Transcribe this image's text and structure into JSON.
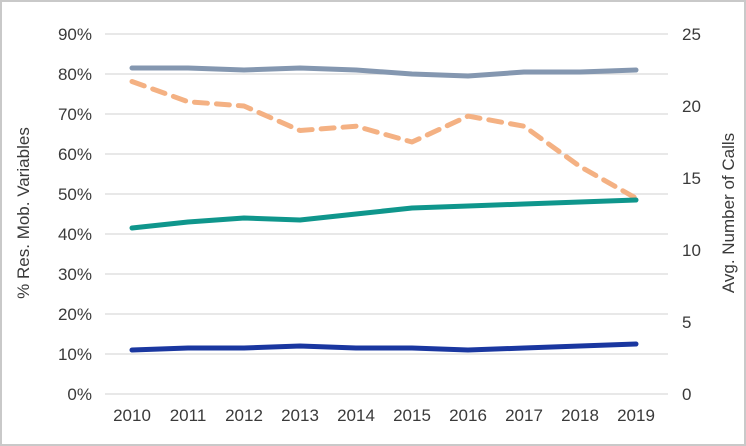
{
  "frame": {
    "background": "#ffffff",
    "border_color": "#c9c9c9",
    "gridline_color": "#d9d9d9",
    "text_color": "#3a3a3a"
  },
  "chart_data": {
    "type": "line",
    "title": "",
    "x_categories": [
      "2010",
      "2011",
      "2012",
      "2013",
      "2014",
      "2015",
      "2016",
      "2017",
      "2018",
      "2019"
    ],
    "left_axis": {
      "title": "% Res. Mob. Variables",
      "range": [
        0,
        90
      ],
      "tick_step": 10,
      "tick_labels": [
        "0%",
        "10%",
        "20%",
        "30%",
        "40%",
        "50%",
        "60%",
        "70%",
        "80%",
        "90%"
      ]
    },
    "right_axis": {
      "title": "Avg. Number of Calls",
      "range": [
        0,
        25
      ],
      "tick_step": 5,
      "tick_labels": [
        "0",
        "5",
        "10",
        "15",
        "20",
        "25"
      ]
    },
    "grid": "horizontal",
    "legend": "none",
    "series": [
      {
        "id": "slate-line",
        "axis": "left",
        "style": "solid",
        "color": "#8497B0",
        "values": [
          81.5,
          81.5,
          81,
          81.5,
          81,
          80,
          79.5,
          80.5,
          80.5,
          81
        ]
      },
      {
        "id": "orange-dashed-line",
        "axis": "right",
        "style": "dashed",
        "color": "#F4B183",
        "values": [
          21.7,
          20.3,
          20.0,
          18.3,
          18.6,
          17.5,
          19.3,
          18.6,
          15.8,
          13.6
        ]
      },
      {
        "id": "teal-line",
        "axis": "left",
        "style": "solid",
        "color": "#0F968C",
        "values": [
          41.5,
          43,
          44,
          43.5,
          45,
          46.5,
          47,
          47.5,
          48,
          48.5
        ]
      },
      {
        "id": "navy-line",
        "axis": "left",
        "style": "solid",
        "color": "#1A37A0",
        "values": [
          11,
          11.5,
          11.5,
          12,
          11.5,
          11.5,
          11,
          11.5,
          12,
          12.5
        ]
      }
    ]
  }
}
